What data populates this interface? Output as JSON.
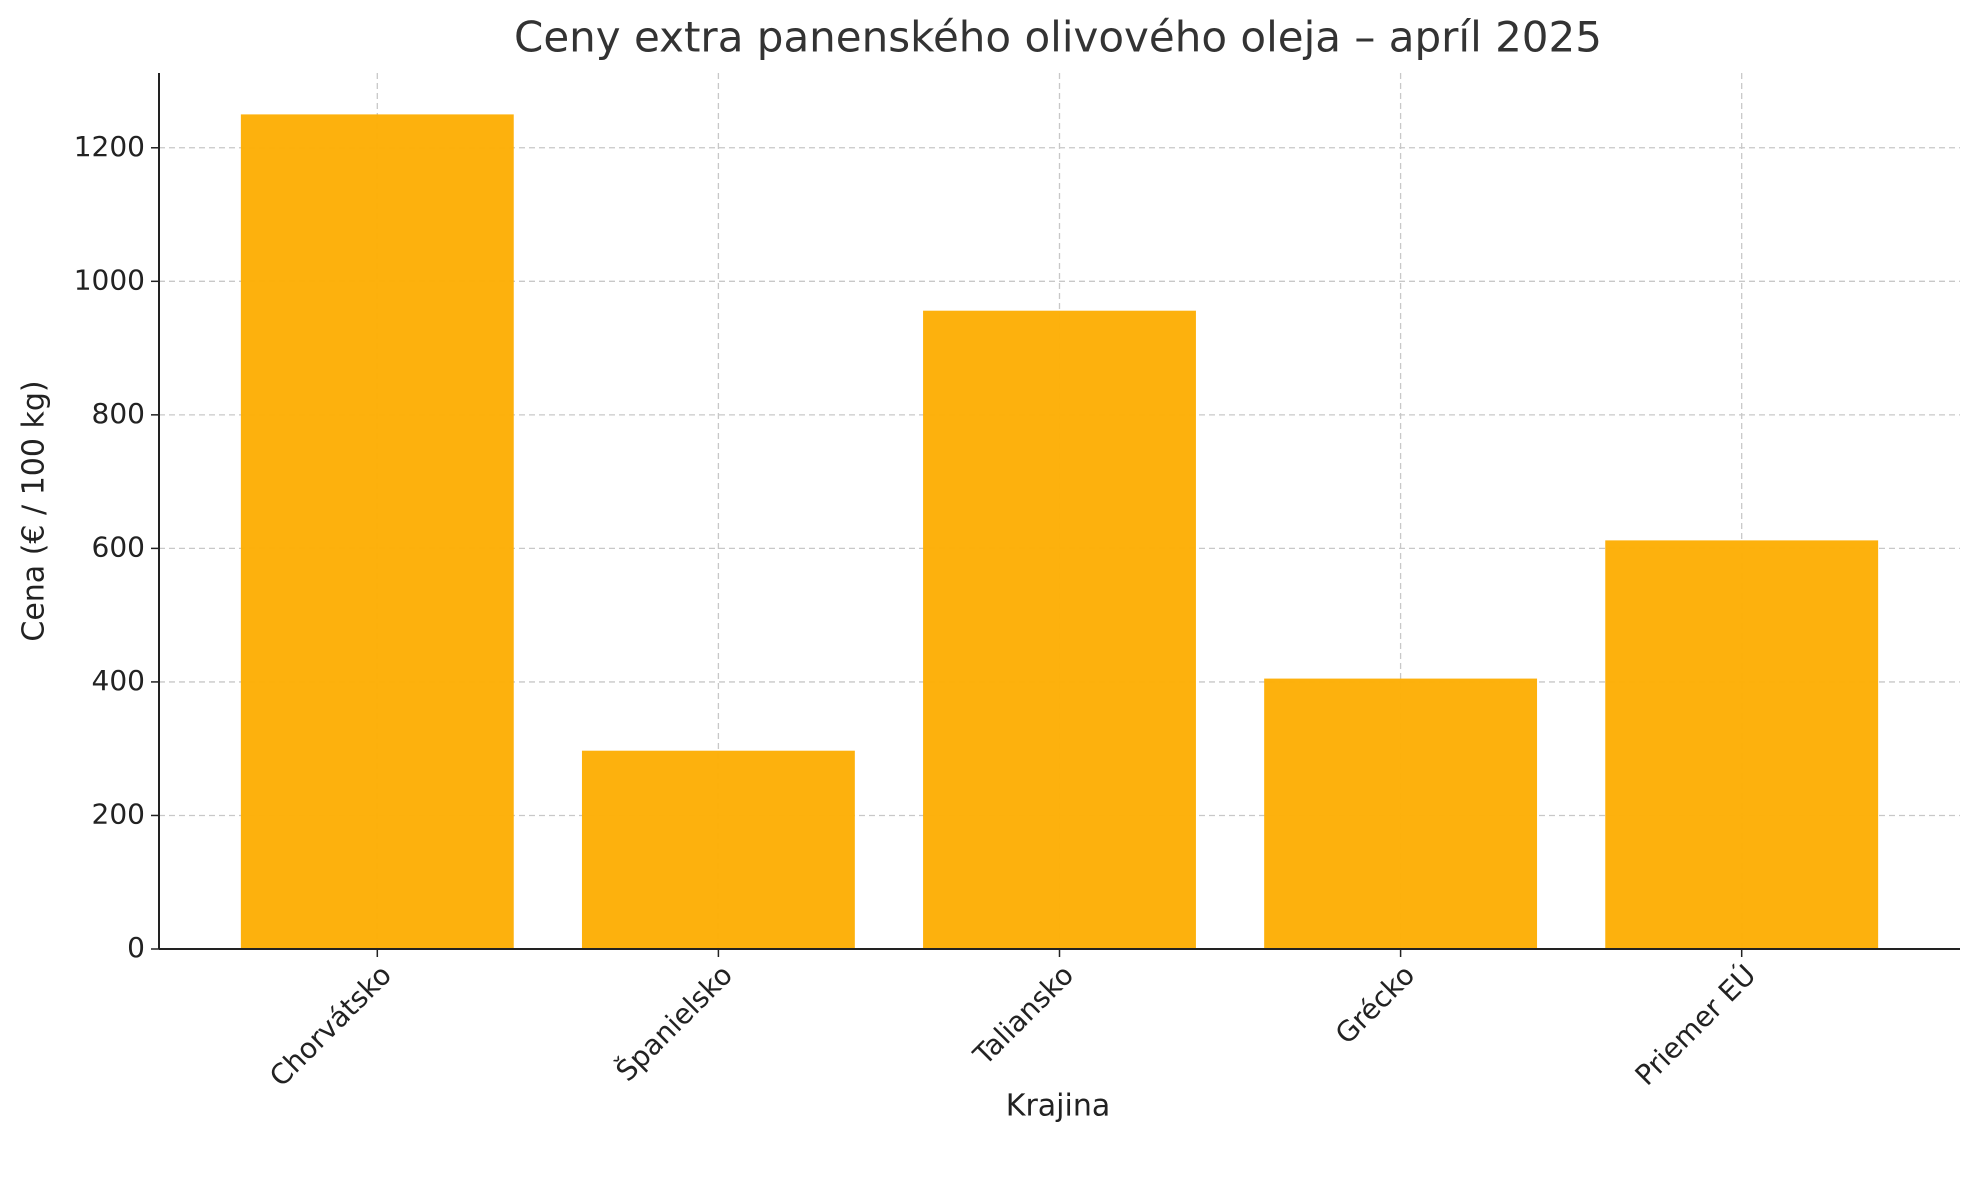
{
  "chart_data": {
    "type": "bar",
    "title": "Ceny extra panenského olivového oleja – apríl 2025",
    "x_label": "Krajina",
    "y_label": "Cena (€ / 100 kg)",
    "categories": [
      "Chorvátsko",
      "Španielsko",
      "Taliansko",
      "Grécko",
      "Priemer EÚ"
    ],
    "values": [
      1250,
      297,
      956,
      405,
      612
    ],
    "color": "#fdae05",
    "ylim": [
      0,
      1312
    ],
    "yticks": [
      0,
      200,
      400,
      600,
      800,
      1000,
      1200
    ],
    "grid": true
  }
}
